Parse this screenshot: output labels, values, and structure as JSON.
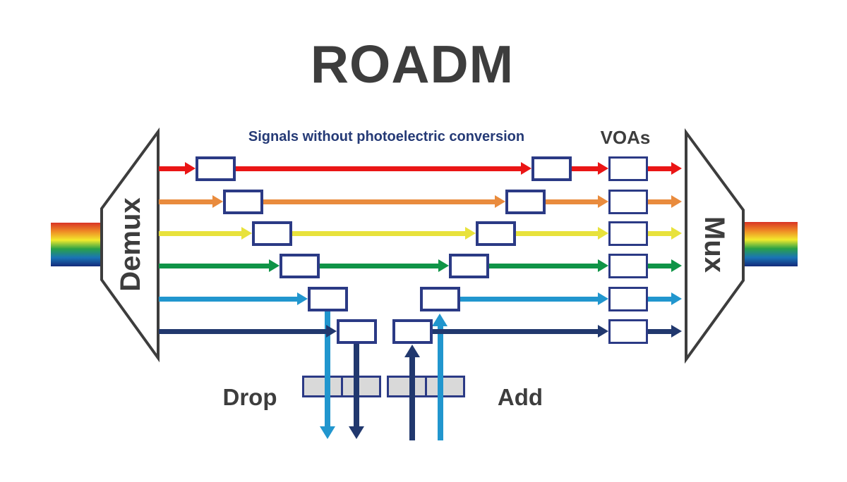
{
  "title": "ROADM",
  "subtitle": "Signals without photoelectric conversion",
  "labels": {
    "voas": "VOAs",
    "demux": "Demux",
    "mux": "Mux",
    "drop": "Drop",
    "add": "Add"
  },
  "channels": [
    {
      "name": "red",
      "color": "#ea1515"
    },
    {
      "name": "orange",
      "color": "#e98b3d"
    },
    {
      "name": "yellow",
      "color": "#e8e23c"
    },
    {
      "name": "green",
      "color": "#0f9447"
    },
    {
      "name": "light-blue",
      "color": "#2196ce"
    },
    {
      "name": "dark-blue",
      "color": "#21386e"
    }
  ],
  "colors": {
    "background": "#ffffff",
    "title_text": "#3d3d3d",
    "subtitle_text": "#253a76",
    "box_border": "#2b3a85",
    "shape_stroke": "#3d3d3d",
    "coupler_fill": "#d9d9d9"
  },
  "rainbow": {
    "stops": [
      "#d93425",
      "#ef8b25",
      "#f2ea2c",
      "#2aa147",
      "#1a74b5",
      "#142a7b"
    ]
  }
}
